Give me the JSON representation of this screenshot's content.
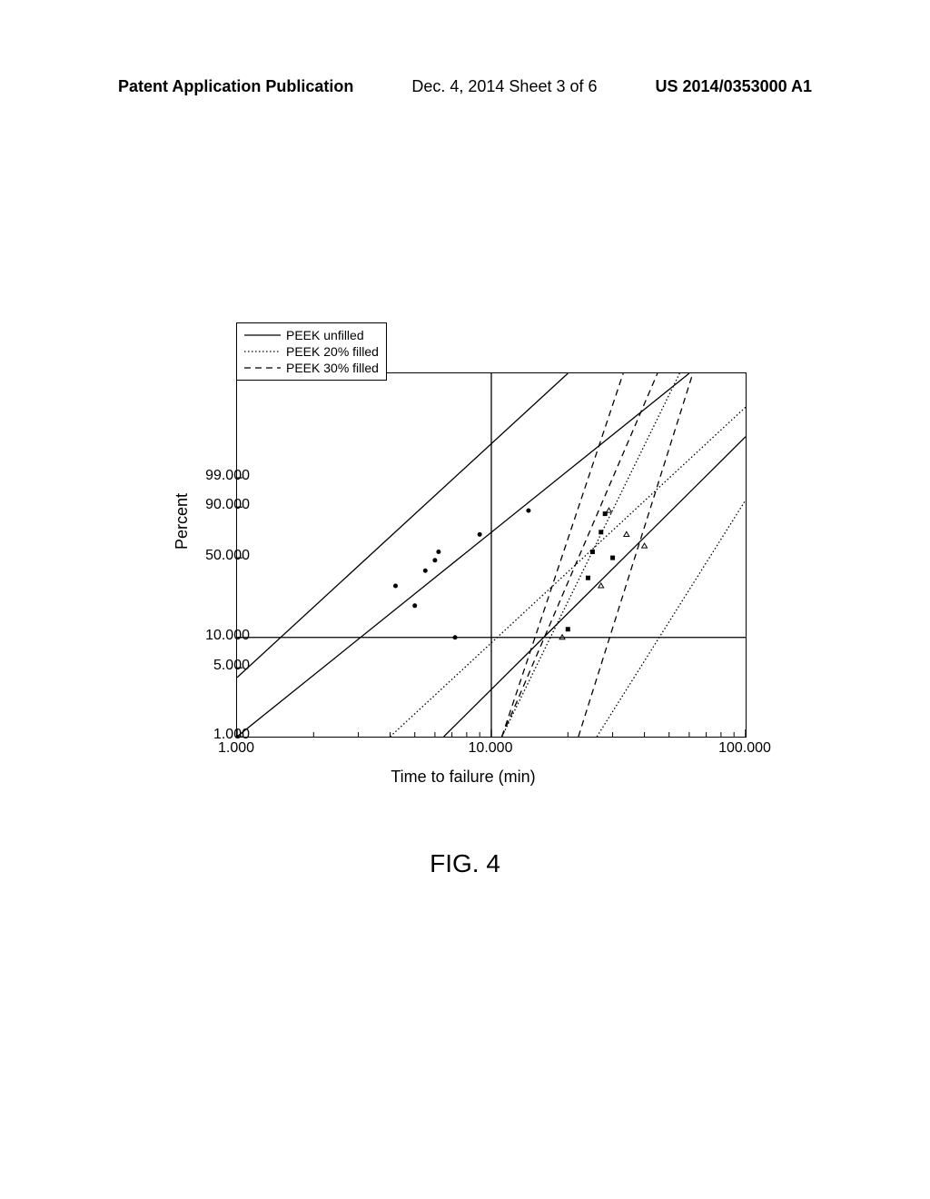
{
  "header": {
    "left": "Patent Application Publication",
    "center": "Dec. 4, 2014  Sheet 3 of 6",
    "right": "US 2014/0353000 A1"
  },
  "figure_caption": "FIG. 4",
  "chart": {
    "type": "weibull-probability",
    "x_label": "Time to failure (min)",
    "y_label": "Percent",
    "x_scale": "log10",
    "y_scale": "weibull",
    "xlim": [
      1.0,
      100.0
    ],
    "x_ticks": [
      1.0,
      10.0,
      100.0
    ],
    "y_ticks": [
      1.0,
      5.0,
      10.0,
      50.0,
      90.0,
      99.0
    ],
    "background_color": "#ffffff",
    "axis_color": "#000000",
    "ref_vline_x": 10.0,
    "ref_hline_y": 10.0,
    "legend": {
      "items": [
        {
          "label": "PEEK unfilled",
          "style": "solid"
        },
        {
          "label": "PEEK 20% filled",
          "style": "dotted"
        },
        {
          "label": "PEEK 30% filled",
          "style": "dashed"
        }
      ]
    },
    "lines": [
      {
        "name": "unfilled-fit",
        "style": "solid",
        "series": 0,
        "x": [
          1.0,
          60
        ],
        "yw": [
          -4.6,
          4.0
        ]
      },
      {
        "name": "unfilled-lo",
        "style": "solid",
        "series": 0,
        "x": [
          1.0,
          20
        ],
        "yw": [
          -3.2,
          4.0
        ]
      },
      {
        "name": "unfilled-hi",
        "style": "solid",
        "series": 0,
        "x": [
          6.5,
          100
        ],
        "yw": [
          -4.6,
          2.5
        ]
      },
      {
        "name": "filled20-fit",
        "style": "dotted",
        "series": 1,
        "x": [
          4.0,
          100
        ],
        "yw": [
          -4.6,
          3.2
        ]
      },
      {
        "name": "filled20-lo",
        "style": "dotted",
        "series": 1,
        "x": [
          11,
          55
        ],
        "yw": [
          -4.6,
          4.0
        ]
      },
      {
        "name": "filled20-hi",
        "style": "dotted",
        "series": 1,
        "x": [
          26,
          100
        ],
        "yw": [
          -4.6,
          1.0
        ]
      },
      {
        "name": "filled30-fit",
        "style": "dashed",
        "series": 2,
        "x": [
          11,
          45
        ],
        "yw": [
          -4.6,
          4.0
        ]
      },
      {
        "name": "filled30-lo",
        "style": "dashed",
        "series": 2,
        "x": [
          11,
          33
        ],
        "yw": [
          -4.6,
          4.0
        ]
      },
      {
        "name": "filled30-hi",
        "style": "dashed",
        "series": 2,
        "x": [
          22,
          62
        ],
        "yw": [
          -4.6,
          4.0
        ]
      }
    ],
    "points": [
      {
        "series": 0,
        "marker": "circle",
        "x": 4.2,
        "percent": 30
      },
      {
        "series": 0,
        "marker": "circle",
        "x": 5.0,
        "percent": 20
      },
      {
        "series": 0,
        "marker": "circle",
        "x": 5.5,
        "percent": 40
      },
      {
        "series": 0,
        "marker": "circle",
        "x": 6.0,
        "percent": 48
      },
      {
        "series": 0,
        "marker": "circle",
        "x": 6.2,
        "percent": 55
      },
      {
        "series": 0,
        "marker": "circle",
        "x": 7.2,
        "percent": 10
      },
      {
        "series": 0,
        "marker": "circle",
        "x": 9.0,
        "percent": 70
      },
      {
        "series": 0,
        "marker": "circle",
        "x": 14,
        "percent": 88
      },
      {
        "series": 1,
        "marker": "triangle",
        "x": 19,
        "percent": 10
      },
      {
        "series": 1,
        "marker": "triangle",
        "x": 27,
        "percent": 30
      },
      {
        "series": 1,
        "marker": "triangle",
        "x": 29,
        "percent": 88
      },
      {
        "series": 1,
        "marker": "triangle",
        "x": 34,
        "percent": 70
      },
      {
        "series": 1,
        "marker": "triangle",
        "x": 40,
        "percent": 60
      },
      {
        "series": 2,
        "marker": "square",
        "x": 20,
        "percent": 12
      },
      {
        "series": 2,
        "marker": "square",
        "x": 24,
        "percent": 35
      },
      {
        "series": 2,
        "marker": "square",
        "x": 25,
        "percent": 55
      },
      {
        "series": 2,
        "marker": "square",
        "x": 27,
        "percent": 72
      },
      {
        "series": 2,
        "marker": "square",
        "x": 28,
        "percent": 86
      },
      {
        "series": 2,
        "marker": "square",
        "x": 30,
        "percent": 50
      }
    ],
    "colors": {
      "line": "#000000",
      "marker_fill": "#000000",
      "marker_stroke": "#000000"
    },
    "line_width": 1.3,
    "marker_size": 5
  }
}
